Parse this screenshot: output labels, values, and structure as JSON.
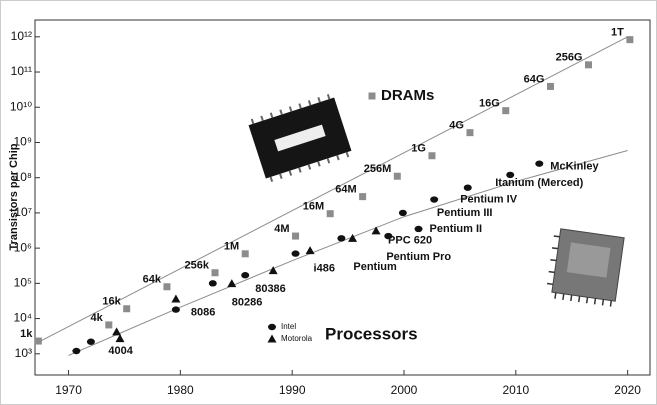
{
  "chart_data": {
    "type": "scatter",
    "ylabel": "Transistors per Chip",
    "log_y": true,
    "xlim": [
      1967,
      2022
    ],
    "ylim": [
      250,
      3000000000000
    ],
    "xticks": [
      1970,
      1980,
      1990,
      2000,
      2010,
      2020
    ],
    "yticks": [
      {
        "value": 1000,
        "label": "10³"
      },
      {
        "value": 10000,
        "label": "10⁴"
      },
      {
        "value": 100000,
        "label": "10⁵"
      },
      {
        "value": 1000000,
        "label": "10⁶"
      },
      {
        "value": 10000000,
        "label": "10⁷"
      },
      {
        "value": 100000000,
        "label": "10⁸"
      },
      {
        "value": 1000000000,
        "label": "10⁹"
      },
      {
        "value": 10000000000,
        "label": "10¹⁰"
      },
      {
        "value": 100000000000,
        "label": "10¹¹"
      },
      {
        "value": 1000000000000,
        "label": "10¹²"
      }
    ],
    "series": [
      {
        "name": "DRAMs",
        "marker": "square",
        "color": "#8c8c8c",
        "x": [
          1967.3,
          1973.6,
          1975.2,
          1978.8,
          1983.1,
          1985.8,
          1990.3,
          1993.4,
          1996.3,
          1999.4,
          2002.5,
          2005.9,
          2009.1,
          2013.1,
          2016.5,
          2020.2
        ],
        "values": [
          2300,
          6600,
          19000,
          80000,
          200000,
          690000,
          2200000,
          9500000,
          29000000,
          110000000,
          420000000,
          1900000000,
          8000000000,
          39000000000,
          160000000000,
          830000000000
        ],
        "labels": [
          "1k",
          "4k",
          "16k",
          "64k",
          "256k",
          "1M",
          "4M",
          "16M",
          "64M",
          "256M",
          "1G",
          "4G",
          "16G",
          "64G",
          "256G",
          "1T"
        ]
      },
      {
        "name": "Intel",
        "marker": "circle",
        "color": "#111111",
        "x": [
          1970.7,
          1972,
          1979.6,
          1982.9,
          1985.8,
          1990.3,
          1994.4,
          1998.6,
          2001.3,
          1999.9,
          2002.7,
          2005.7,
          2009.5,
          2012.1
        ],
        "values": [
          1200,
          2200,
          18000,
          100000,
          170000,
          700000,
          1900000,
          2200000,
          3500000,
          10000000,
          24000000,
          52000000,
          120000000,
          250000000
        ],
        "labels": [
          "4004",
          null,
          "8086",
          "80286",
          "80386",
          "i486",
          "Pentium",
          "Pentium Pro",
          "Pentium II",
          "Pentium III",
          "Pentium IV",
          null,
          "Itanium (Merced)",
          "McKinley"
        ]
      },
      {
        "name": "Motorola",
        "marker": "triangle",
        "color": "#111111",
        "x": [
          1974.3,
          1974.6,
          1979.6,
          1984.6,
          1988.3,
          1991.6,
          1995.4,
          1997.5
        ],
        "values": [
          4200,
          2700,
          36000,
          98000,
          230000,
          850000,
          1900000,
          3100000
        ],
        "labels": [
          null,
          null,
          null,
          null,
          null,
          null,
          null,
          "PPC 620"
        ]
      }
    ],
    "trend_lines": [
      {
        "color": "#8c8c8c",
        "x": [
          1967,
          2020
        ],
        "values": [
          1900,
          1000000000000
        ]
      },
      {
        "color": "#8c8c8c",
        "x": [
          1970,
          1980,
          1990,
          2000,
          2010,
          2020
        ],
        "values": [
          900,
          21000,
          440000,
          7800000,
          78000000,
          590000000
        ]
      }
    ],
    "annotation": "Processors"
  }
}
